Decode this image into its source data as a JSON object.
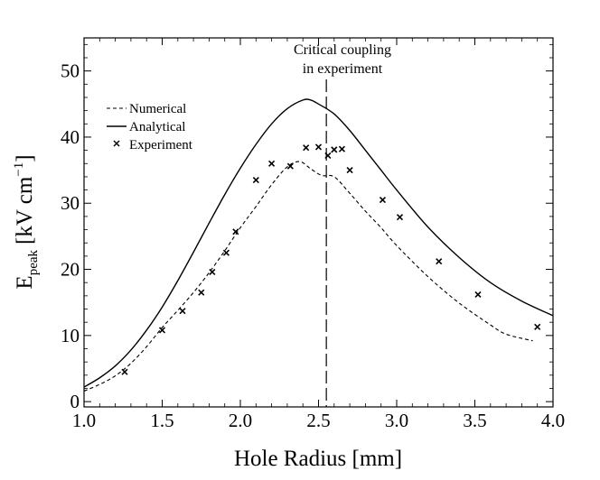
{
  "chart_data": {
    "type": "line",
    "title": "",
    "xlabel": "Hole Radius [mm]",
    "ylabel": {
      "base": "E",
      "sub": "peak",
      "units": "[kV cm",
      "sup": "−1",
      "close": "]"
    },
    "xlim": [
      1.0,
      4.0
    ],
    "ylim": [
      -0.8,
      55
    ],
    "xticks": [
      1.0,
      1.5,
      2.0,
      2.5,
      3.0,
      3.5,
      4.0
    ],
    "xtick_labels": [
      "1.0",
      "1.5",
      "2.0",
      "2.5",
      "3.0",
      "3.5",
      "4.0"
    ],
    "yticks": [
      0,
      10,
      20,
      30,
      40,
      50
    ],
    "ytick_labels": [
      "0",
      "10",
      "20",
      "30",
      "40",
      "50"
    ],
    "grid": false,
    "legend_position": "top-left",
    "series": [
      {
        "name": "Numerical",
        "style": "dashed",
        "points": [
          [
            1.0,
            1.6
          ],
          [
            1.1,
            2.6
          ],
          [
            1.2,
            3.9
          ],
          [
            1.3,
            5.8
          ],
          [
            1.4,
            8.3
          ],
          [
            1.5,
            11.2
          ],
          [
            1.6,
            13.8
          ],
          [
            1.7,
            16.5
          ],
          [
            1.8,
            19.5
          ],
          [
            1.9,
            22.8
          ],
          [
            2.0,
            26.3
          ],
          [
            2.1,
            29.5
          ],
          [
            2.2,
            32.8
          ],
          [
            2.3,
            35.5
          ],
          [
            2.38,
            36.3
          ],
          [
            2.45,
            35.2
          ],
          [
            2.52,
            34.2
          ],
          [
            2.6,
            34.0
          ],
          [
            2.7,
            31.5
          ],
          [
            2.8,
            28.8
          ],
          [
            2.9,
            26.3
          ],
          [
            3.0,
            23.6
          ],
          [
            3.2,
            18.9
          ],
          [
            3.4,
            14.9
          ],
          [
            3.6,
            11.6
          ],
          [
            3.7,
            10.2
          ],
          [
            3.87,
            9.2
          ]
        ]
      },
      {
        "name": "Analytical",
        "style": "solid",
        "points": [
          [
            1.0,
            2.2
          ],
          [
            1.1,
            3.6
          ],
          [
            1.2,
            5.4
          ],
          [
            1.3,
            7.8
          ],
          [
            1.4,
            10.8
          ],
          [
            1.5,
            14.3
          ],
          [
            1.6,
            18.3
          ],
          [
            1.7,
            22.6
          ],
          [
            1.8,
            27.0
          ],
          [
            1.9,
            31.3
          ],
          [
            2.0,
            35.3
          ],
          [
            2.1,
            38.9
          ],
          [
            2.2,
            42.0
          ],
          [
            2.3,
            44.3
          ],
          [
            2.4,
            45.6
          ],
          [
            2.45,
            45.6
          ],
          [
            2.5,
            45.0
          ],
          [
            2.6,
            43.5
          ],
          [
            2.7,
            41.0
          ],
          [
            2.8,
            38.0
          ],
          [
            2.9,
            35.0
          ],
          [
            3.0,
            32.0
          ],
          [
            3.2,
            26.4
          ],
          [
            3.4,
            21.8
          ],
          [
            3.6,
            18.0
          ],
          [
            3.8,
            15.2
          ],
          [
            4.0,
            13.0
          ]
        ]
      },
      {
        "name": "Experiment",
        "style": "markers",
        "points": [
          [
            1.26,
            4.5
          ],
          [
            1.5,
            10.8
          ],
          [
            1.63,
            13.7
          ],
          [
            1.75,
            16.5
          ],
          [
            1.82,
            19.6
          ],
          [
            1.91,
            22.5
          ],
          [
            1.97,
            25.7
          ],
          [
            2.1,
            33.5
          ],
          [
            2.2,
            36.0
          ],
          [
            2.32,
            35.6
          ],
          [
            2.42,
            38.4
          ],
          [
            2.5,
            38.5
          ],
          [
            2.56,
            37.2
          ],
          [
            2.6,
            38.1
          ],
          [
            2.65,
            38.2
          ],
          [
            2.7,
            35.0
          ],
          [
            2.91,
            30.5
          ],
          [
            3.02,
            27.9
          ],
          [
            3.27,
            21.2
          ],
          [
            3.52,
            16.2
          ],
          [
            3.9,
            11.3
          ]
        ]
      }
    ],
    "annotations": [
      {
        "kind": "vline",
        "x": 2.55,
        "style": "long-dash",
        "text_lines": [
          "Critical coupling",
          "in experiment"
        ]
      }
    ]
  }
}
